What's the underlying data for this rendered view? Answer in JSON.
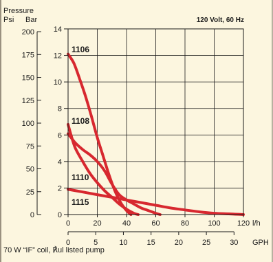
{
  "colors": {
    "background": "#fcf6df",
    "curve": "#d7282f",
    "grid": "#1a1a1a",
    "text": "#1a1a1a"
  },
  "chart_data": {
    "type": "line",
    "title": "120 Volt, 60 Hz",
    "y_axis_title": "Pressure",
    "y_units": [
      "Psi",
      "Bar"
    ],
    "psi_ticks": [
      "200",
      "175",
      "150",
      "125",
      "100",
      "75",
      "50",
      "25",
      "0"
    ],
    "bar_ticks": [
      "14",
      "12",
      "10",
      "8",
      "6",
      "4",
      "2",
      "0"
    ],
    "lh_ticks": [
      "0",
      "20",
      "40",
      "60",
      "80",
      "100",
      "120"
    ],
    "gph_ticks": [
      "0",
      "5",
      "10",
      "15",
      "20",
      "25",
      "30"
    ],
    "x_unit_lh": "l/h",
    "x_unit_gph": "GPH",
    "xlim_lh": [
      0,
      120
    ],
    "ylim_bar": [
      0,
      14
    ],
    "grid": true,
    "footnote": "70 W “IF” coil, ℟ul listed pump",
    "series": [
      {
        "name": "1106",
        "x": [
          0,
          4,
          8,
          12,
          16,
          20,
          24,
          28,
          32,
          36,
          40,
          43
        ],
        "y": [
          12.1,
          11.4,
          10.2,
          8.9,
          7.4,
          5.8,
          4.4,
          3.0,
          1.8,
          0.9,
          0.3,
          0.0
        ]
      },
      {
        "name": "1108",
        "x": [
          0,
          2,
          5,
          10,
          15,
          20,
          25,
          30,
          35,
          40,
          45,
          48
        ],
        "y": [
          6.8,
          6.0,
          5.0,
          4.0,
          3.1,
          2.4,
          1.8,
          1.3,
          0.8,
          0.4,
          0.1,
          0.0
        ]
      },
      {
        "name": "1110",
        "x": [
          0,
          5,
          10,
          15,
          20,
          25,
          30,
          35,
          40,
          45,
          50,
          55,
          60,
          63
        ],
        "y": [
          6.1,
          5.4,
          4.9,
          4.5,
          4.0,
          3.3,
          2.3,
          1.5,
          1.1,
          0.8,
          0.5,
          0.3,
          0.1,
          0.0
        ]
      },
      {
        "name": "1115",
        "x": [
          0,
          10,
          20,
          30,
          40,
          50,
          60,
          70,
          80,
          90,
          100,
          110,
          120
        ],
        "y": [
          1.9,
          1.7,
          1.5,
          1.3,
          1.1,
          0.9,
          0.7,
          0.5,
          0.35,
          0.2,
          0.1,
          0.05,
          0.0
        ]
      }
    ]
  }
}
